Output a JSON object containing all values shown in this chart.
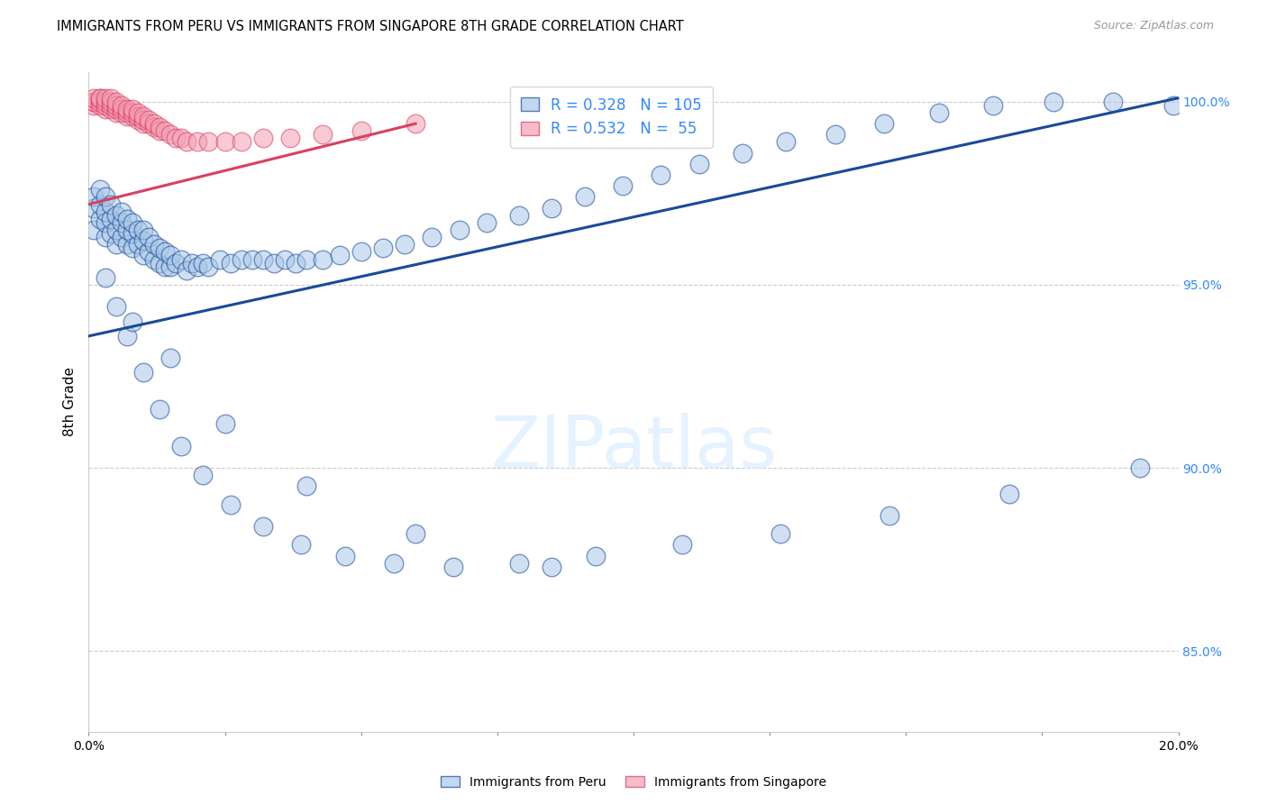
{
  "title": "IMMIGRANTS FROM PERU VS IMMIGRANTS FROM SINGAPORE 8TH GRADE CORRELATION CHART",
  "source": "Source: ZipAtlas.com",
  "ylabel": "8th Grade",
  "watermark": "ZIPatlas",
  "legend_peru_R": 0.328,
  "legend_peru_N": 105,
  "legend_singapore_R": 0.532,
  "legend_singapore_N": 55,
  "xmin": 0.0,
  "xmax": 0.2,
  "ymin": 0.828,
  "ymax": 1.008,
  "yticks": [
    0.85,
    0.9,
    0.95,
    1.0
  ],
  "ytick_labels": [
    "85.0%",
    "90.0%",
    "95.0%",
    "100.0%"
  ],
  "xticks": [
    0.0,
    0.025,
    0.05,
    0.075,
    0.1,
    0.125,
    0.15,
    0.175,
    0.2
  ],
  "xtick_labels": [
    "0.0%",
    "",
    "",
    "",
    "",
    "",
    "",
    "",
    "20.0%"
  ],
  "color_peru": "#aac8e8",
  "color_singapore": "#f4a0b5",
  "color_trend_peru": "#1a4a9a",
  "color_trend_singapore": "#d94060",
  "trend_peru_x0": 0.0,
  "trend_peru_y0": 0.936,
  "trend_peru_x1": 0.2,
  "trend_peru_y1": 1.001,
  "trend_singapore_x0": 0.0,
  "trend_singapore_y0": 0.972,
  "trend_singapore_x1": 0.06,
  "trend_singapore_y1": 0.994,
  "peru_x": [
    0.001,
    0.001,
    0.001,
    0.002,
    0.002,
    0.002,
    0.003,
    0.003,
    0.003,
    0.003,
    0.004,
    0.004,
    0.004,
    0.005,
    0.005,
    0.005,
    0.006,
    0.006,
    0.006,
    0.007,
    0.007,
    0.007,
    0.008,
    0.008,
    0.008,
    0.009,
    0.009,
    0.01,
    0.01,
    0.01,
    0.011,
    0.011,
    0.012,
    0.012,
    0.013,
    0.013,
    0.014,
    0.014,
    0.015,
    0.015,
    0.016,
    0.017,
    0.018,
    0.019,
    0.02,
    0.021,
    0.022,
    0.024,
    0.026,
    0.028,
    0.03,
    0.032,
    0.034,
    0.036,
    0.038,
    0.04,
    0.043,
    0.046,
    0.05,
    0.054,
    0.058,
    0.063,
    0.068,
    0.073,
    0.079,
    0.085,
    0.091,
    0.098,
    0.105,
    0.112,
    0.12,
    0.128,
    0.137,
    0.146,
    0.156,
    0.166,
    0.177,
    0.188,
    0.199,
    0.003,
    0.005,
    0.007,
    0.01,
    0.013,
    0.017,
    0.021,
    0.026,
    0.032,
    0.039,
    0.047,
    0.056,
    0.067,
    0.079,
    0.093,
    0.109,
    0.127,
    0.147,
    0.169,
    0.193,
    0.008,
    0.015,
    0.025,
    0.04,
    0.06,
    0.085
  ],
  "peru_y": [
    0.965,
    0.971,
    0.974,
    0.968,
    0.972,
    0.976,
    0.963,
    0.967,
    0.97,
    0.974,
    0.964,
    0.968,
    0.972,
    0.961,
    0.965,
    0.969,
    0.963,
    0.967,
    0.97,
    0.961,
    0.965,
    0.968,
    0.96,
    0.964,
    0.967,
    0.961,
    0.965,
    0.958,
    0.962,
    0.965,
    0.959,
    0.963,
    0.957,
    0.961,
    0.956,
    0.96,
    0.955,
    0.959,
    0.955,
    0.958,
    0.956,
    0.957,
    0.954,
    0.956,
    0.955,
    0.956,
    0.955,
    0.957,
    0.956,
    0.957,
    0.957,
    0.957,
    0.956,
    0.957,
    0.956,
    0.957,
    0.957,
    0.958,
    0.959,
    0.96,
    0.961,
    0.963,
    0.965,
    0.967,
    0.969,
    0.971,
    0.974,
    0.977,
    0.98,
    0.983,
    0.986,
    0.989,
    0.991,
    0.994,
    0.997,
    0.999,
    1.0,
    1.0,
    0.999,
    0.952,
    0.944,
    0.936,
    0.926,
    0.916,
    0.906,
    0.898,
    0.89,
    0.884,
    0.879,
    0.876,
    0.874,
    0.873,
    0.874,
    0.876,
    0.879,
    0.882,
    0.887,
    0.893,
    0.9,
    0.94,
    0.93,
    0.912,
    0.895,
    0.882,
    0.873
  ],
  "singapore_x": [
    0.001,
    0.001,
    0.001,
    0.001,
    0.002,
    0.002,
    0.002,
    0.002,
    0.003,
    0.003,
    0.003,
    0.003,
    0.004,
    0.004,
    0.004,
    0.004,
    0.005,
    0.005,
    0.005,
    0.005,
    0.006,
    0.006,
    0.006,
    0.007,
    0.007,
    0.007,
    0.008,
    0.008,
    0.008,
    0.009,
    0.009,
    0.009,
    0.01,
    0.01,
    0.01,
    0.011,
    0.011,
    0.012,
    0.012,
    0.013,
    0.013,
    0.014,
    0.015,
    0.016,
    0.017,
    0.018,
    0.02,
    0.022,
    0.025,
    0.028,
    0.032,
    0.037,
    0.043,
    0.05,
    0.06
  ],
  "singapore_y": [
    0.999,
    1.0,
    1.0,
    1.001,
    0.999,
    1.0,
    1.001,
    1.001,
    0.998,
    0.999,
    1.0,
    1.001,
    0.998,
    0.999,
    1.0,
    1.001,
    0.997,
    0.998,
    0.999,
    1.0,
    0.997,
    0.998,
    0.999,
    0.996,
    0.997,
    0.998,
    0.996,
    0.997,
    0.998,
    0.995,
    0.996,
    0.997,
    0.994,
    0.995,
    0.996,
    0.994,
    0.995,
    0.993,
    0.994,
    0.992,
    0.993,
    0.992,
    0.991,
    0.99,
    0.99,
    0.989,
    0.989,
    0.989,
    0.989,
    0.989,
    0.99,
    0.99,
    0.991,
    0.992,
    0.994
  ]
}
